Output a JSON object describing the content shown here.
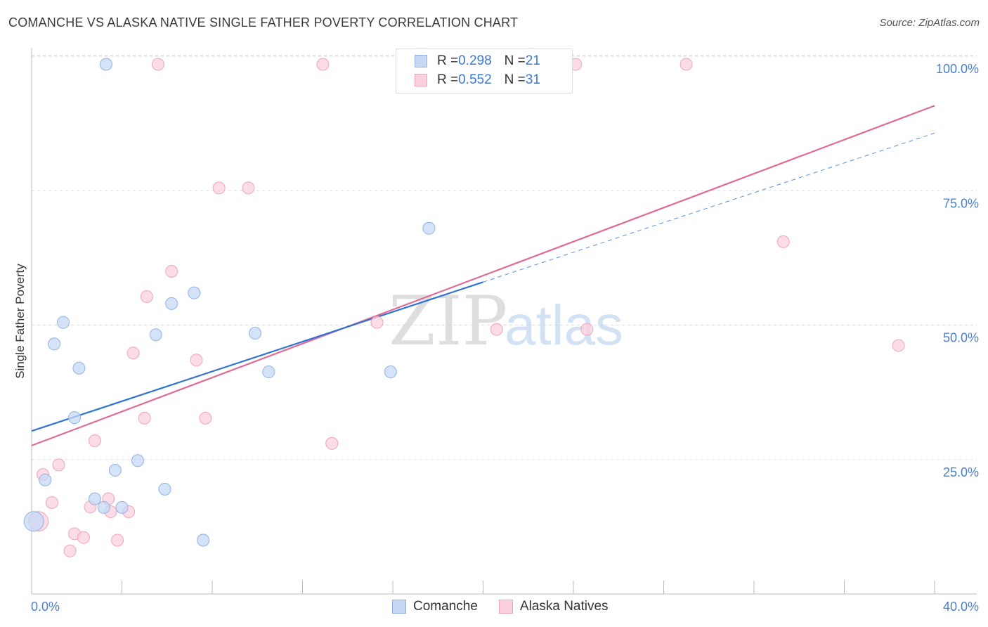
{
  "title": "COMANCHE VS ALASKA NATIVE SINGLE FATHER POVERTY CORRELATION CHART",
  "source": "Source: ZipAtlas.com",
  "watermark": {
    "zip": "ZIP",
    "atlas": "atlas"
  },
  "legend": {
    "rows": [
      {
        "r_label": "R = ",
        "r_value": "0.298",
        "n_label": "N = ",
        "n_value": "21"
      },
      {
        "r_label": "R = ",
        "r_value": "0.552",
        "n_label": "N = ",
        "n_value": "31"
      }
    ]
  },
  "colors": {
    "comanche_fill": "#c5d9f5",
    "comanche_stroke": "#8fb2e6",
    "comanche_line": "#2f74d0",
    "alaska_fill": "#fbd0de",
    "alaska_stroke": "#f0a3bd",
    "alaska_line": "#e06a95",
    "tick_text": "#4a7fd0",
    "grid": "#dddddd"
  },
  "chart_data": {
    "type": "scatter",
    "title": "COMANCHE VS ALASKA NATIVE SINGLE FATHER POVERTY CORRELATION CHART",
    "xlabel": "",
    "ylabel": "Single Father Poverty",
    "xlim": [
      0,
      40
    ],
    "ylim": [
      0,
      102
    ],
    "x_tick_labels": [
      "0.0%",
      "40.0%"
    ],
    "y_tick_labels": [
      "25.0%",
      "50.0%",
      "75.0%",
      "100.0%"
    ],
    "y_ticks": [
      25,
      50,
      75,
      100
    ],
    "grid": true,
    "series": [
      {
        "name": "Comanche",
        "points": [
          [
            0.1,
            13.5
          ],
          [
            3.3,
            98.5
          ],
          [
            1.4,
            50.5
          ],
          [
            1.0,
            46.5
          ],
          [
            2.1,
            42.0
          ],
          [
            1.9,
            32.8
          ],
          [
            0.6,
            21.2
          ],
          [
            5.5,
            48.2
          ],
          [
            6.2,
            54.0
          ],
          [
            7.2,
            56.0
          ],
          [
            9.9,
            48.5
          ],
          [
            10.5,
            41.3
          ],
          [
            4.7,
            24.8
          ],
          [
            3.7,
            23.0
          ],
          [
            5.9,
            19.5
          ],
          [
            2.8,
            17.7
          ],
          [
            3.2,
            16.1
          ],
          [
            4.0,
            16.1
          ],
          [
            7.6,
            10.0
          ],
          [
            17.6,
            68.0
          ],
          [
            15.9,
            41.3
          ]
        ],
        "trend": {
          "x": [
            0,
            20
          ],
          "y": [
            30.3,
            58.0
          ]
        },
        "trend_extension": {
          "x": [
            20,
            40
          ],
          "y": [
            58.0,
            85.7
          ]
        }
      },
      {
        "name": "Alaska Natives",
        "points": [
          [
            5.6,
            98.5
          ],
          [
            12.9,
            98.5
          ],
          [
            24.1,
            98.5
          ],
          [
            29.0,
            98.5
          ],
          [
            8.3,
            75.5
          ],
          [
            9.6,
            75.5
          ],
          [
            6.2,
            60.0
          ],
          [
            5.1,
            55.3
          ],
          [
            4.5,
            44.8
          ],
          [
            7.3,
            43.5
          ],
          [
            5.0,
            32.7
          ],
          [
            7.7,
            32.7
          ],
          [
            2.8,
            28.5
          ],
          [
            13.3,
            28.0
          ],
          [
            0.5,
            22.2
          ],
          [
            1.2,
            24.0
          ],
          [
            0.9,
            17.0
          ],
          [
            2.6,
            16.2
          ],
          [
            3.4,
            17.7
          ],
          [
            3.5,
            15.3
          ],
          [
            4.3,
            15.3
          ],
          [
            1.9,
            11.2
          ],
          [
            2.3,
            10.5
          ],
          [
            3.8,
            10.0
          ],
          [
            1.7,
            8.0
          ],
          [
            0.3,
            13.5
          ],
          [
            15.3,
            50.5
          ],
          [
            20.6,
            49.2
          ],
          [
            24.6,
            49.2
          ],
          [
            33.3,
            65.5
          ],
          [
            38.4,
            46.2
          ]
        ],
        "trend": {
          "x": [
            0,
            40
          ],
          "y": [
            27.6,
            90.8
          ]
        }
      }
    ]
  },
  "bottom_legend": [
    {
      "label": "Comanche"
    },
    {
      "label": "Alaska Natives"
    }
  ]
}
